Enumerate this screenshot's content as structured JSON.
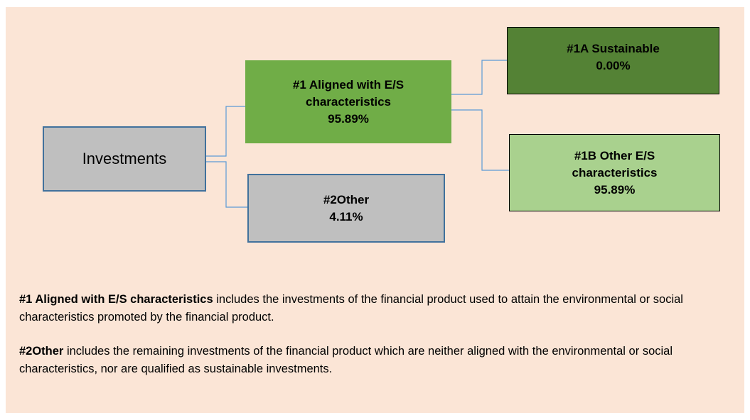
{
  "nodes": [
    {
      "label": "Investments"
    },
    {
      "label": "#1 Aligned with E/S characteristics",
      "value": "95.89%"
    },
    {
      "label": "#1A Sustainable",
      "value": "0.00%"
    },
    {
      "label": "#1B Other E/S characteristics",
      "value": "95.89%"
    },
    {
      "label": "#2Other",
      "value": "4.11%"
    }
  ],
  "notes": [
    {
      "term": "#1 Aligned with E/S characteristics",
      "text": " includes the investments of the financial product used to attain the environmental or social characteristics promoted by the financial product."
    },
    {
      "term": "#2Other",
      "text": " includes the remaining investments of the financial product which are neither aligned with the environmental or social characteristics, nor are qualified as sustainable investments."
    }
  ]
}
